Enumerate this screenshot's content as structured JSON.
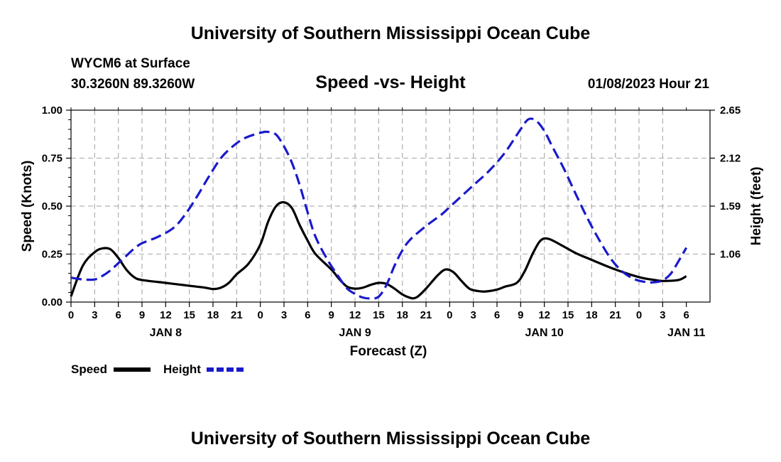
{
  "header": {
    "title": "University of Southern Mississippi Ocean Cube",
    "station": "WYCM6 at Surface",
    "location": "30.3260N  89.3260W",
    "subtitle": "Speed -vs- Height",
    "datetime": "01/08/2023 Hour 21"
  },
  "footer": {
    "title": "University of Southern Mississippi Ocean Cube"
  },
  "legend": {
    "speed_label": "Speed",
    "height_label": "Height"
  },
  "colors": {
    "speed": "#000000",
    "height": "#1a1acc",
    "grid": "#b4b4b4"
  },
  "chart_data": {
    "type": "line",
    "title": "Speed -vs- Height",
    "xlabel": "Forecast (Z)",
    "ylabel_left": "Speed (Knots)",
    "ylabel_right": "Height (feet)",
    "x_unit": "hours since JAN 8 00Z",
    "xlim": [
      -3,
      78
    ],
    "ylim_left": [
      0,
      1.0
    ],
    "ylim_right": [
      0.53,
      2.65
    ],
    "left_ticks": [
      {
        "value": 0,
        "label": "0.00"
      },
      {
        "value": 0.25,
        "label": "0.25"
      },
      {
        "value": 0.5,
        "label": "0.50"
      },
      {
        "value": 0.75,
        "label": "0.75"
      },
      {
        "value": 1.0,
        "label": "1.00"
      }
    ],
    "right_ticks": [
      {
        "value": 1.06,
        "label": "1.06"
      },
      {
        "value": 1.59,
        "label": "1.59"
      },
      {
        "value": 2.12,
        "label": "2.12"
      },
      {
        "value": 2.65,
        "label": "2.65"
      }
    ],
    "x_ticks": [
      {
        "x": -3,
        "label": "0"
      },
      {
        "x": 0,
        "label": "3"
      },
      {
        "x": 3,
        "label": "6"
      },
      {
        "x": 6,
        "label": "9"
      },
      {
        "x": 9,
        "label": "12"
      },
      {
        "x": 12,
        "label": "15"
      },
      {
        "x": 15,
        "label": "18"
      },
      {
        "x": 18,
        "label": "21"
      },
      {
        "x": 21,
        "label": "0"
      },
      {
        "x": 24,
        "label": "3"
      },
      {
        "x": 27,
        "label": "6"
      },
      {
        "x": 30,
        "label": "9"
      },
      {
        "x": 33,
        "label": "12"
      },
      {
        "x": 36,
        "label": "15"
      },
      {
        "x": 39,
        "label": "18"
      },
      {
        "x": 42,
        "label": "21"
      },
      {
        "x": 45,
        "label": "0"
      },
      {
        "x": 48,
        "label": "3"
      },
      {
        "x": 51,
        "label": "6"
      },
      {
        "x": 54,
        "label": "9"
      },
      {
        "x": 57,
        "label": "12"
      },
      {
        "x": 60,
        "label": "15"
      },
      {
        "x": 63,
        "label": "18"
      },
      {
        "x": 66,
        "label": "21"
      },
      {
        "x": 69,
        "label": "0"
      },
      {
        "x": 72,
        "label": "3"
      },
      {
        "x": 75,
        "label": "6"
      }
    ],
    "date_labels": [
      {
        "x": 9,
        "label": "JAN 8"
      },
      {
        "x": 33,
        "label": "JAN 9"
      },
      {
        "x": 57,
        "label": "JAN 10"
      },
      {
        "x": 75,
        "label": "JAN 11"
      }
    ],
    "series": [
      {
        "name": "Speed",
        "axis": "left",
        "style": "solid",
        "points": [
          [
            -3,
            0.03
          ],
          [
            -1.5,
            0.19
          ],
          [
            0,
            0.26
          ],
          [
            1,
            0.28
          ],
          [
            2,
            0.275
          ],
          [
            3,
            0.23
          ],
          [
            4,
            0.17
          ],
          [
            5,
            0.13
          ],
          [
            6,
            0.115
          ],
          [
            9,
            0.1
          ],
          [
            12,
            0.085
          ],
          [
            14,
            0.075
          ],
          [
            15,
            0.068
          ],
          [
            16,
            0.075
          ],
          [
            17,
            0.1
          ],
          [
            18,
            0.145
          ],
          [
            19.5,
            0.2
          ],
          [
            21,
            0.3
          ],
          [
            22,
            0.42
          ],
          [
            23,
            0.5
          ],
          [
            24,
            0.52
          ],
          [
            25,
            0.49
          ],
          [
            26,
            0.4
          ],
          [
            27,
            0.32
          ],
          [
            28,
            0.25
          ],
          [
            30,
            0.17
          ],
          [
            31,
            0.12
          ],
          [
            32,
            0.08
          ],
          [
            33,
            0.07
          ],
          [
            34,
            0.075
          ],
          [
            35,
            0.09
          ],
          [
            36,
            0.1
          ],
          [
            37,
            0.095
          ],
          [
            38,
            0.07
          ],
          [
            39,
            0.04
          ],
          [
            40,
            0.022
          ],
          [
            40.5,
            0.02
          ],
          [
            41,
            0.03
          ],
          [
            42,
            0.07
          ],
          [
            43.5,
            0.14
          ],
          [
            44.5,
            0.17
          ],
          [
            45.5,
            0.155
          ],
          [
            46.5,
            0.11
          ],
          [
            47.5,
            0.07
          ],
          [
            48.5,
            0.058
          ],
          [
            49.5,
            0.055
          ],
          [
            51,
            0.065
          ],
          [
            52,
            0.08
          ],
          [
            53.5,
            0.1
          ],
          [
            54.5,
            0.16
          ],
          [
            55.5,
            0.25
          ],
          [
            56.5,
            0.32
          ],
          [
            57.5,
            0.33
          ],
          [
            59,
            0.3
          ],
          [
            61,
            0.255
          ],
          [
            63,
            0.22
          ],
          [
            66,
            0.17
          ],
          [
            69,
            0.13
          ],
          [
            71,
            0.115
          ],
          [
            72,
            0.11
          ],
          [
            74,
            0.115
          ],
          [
            75,
            0.135
          ]
        ]
      },
      {
        "name": "Height",
        "axis": "right",
        "style": "dashed",
        "points": [
          [
            -3,
            0.8
          ],
          [
            -1.5,
            0.78
          ],
          [
            0,
            0.78
          ],
          [
            1,
            0.82
          ],
          [
            2,
            0.88
          ],
          [
            3,
            0.96
          ],
          [
            4,
            1.04
          ],
          [
            5,
            1.12
          ],
          [
            6,
            1.18
          ],
          [
            8,
            1.25
          ],
          [
            10,
            1.35
          ],
          [
            11.5,
            1.5
          ],
          [
            13,
            1.7
          ],
          [
            14.5,
            1.92
          ],
          [
            16,
            2.12
          ],
          [
            17.5,
            2.25
          ],
          [
            19,
            2.34
          ],
          [
            21,
            2.4
          ],
          [
            22,
            2.41
          ],
          [
            23,
            2.38
          ],
          [
            24,
            2.25
          ],
          [
            25,
            2.07
          ],
          [
            26,
            1.82
          ],
          [
            27,
            1.52
          ],
          [
            28,
            1.25
          ],
          [
            29.5,
            1.0
          ],
          [
            31,
            0.8
          ],
          [
            32,
            0.68
          ],
          [
            33,
            0.62
          ],
          [
            34,
            0.58
          ],
          [
            35,
            0.57
          ],
          [
            36,
            0.59
          ],
          [
            37,
            0.72
          ],
          [
            38,
            0.93
          ],
          [
            39,
            1.1
          ],
          [
            40,
            1.22
          ],
          [
            42,
            1.37
          ],
          [
            44,
            1.5
          ],
          [
            45,
            1.58
          ],
          [
            46,
            1.66
          ],
          [
            48,
            1.82
          ],
          [
            50,
            1.98
          ],
          [
            52,
            2.18
          ],
          [
            54,
            2.44
          ],
          [
            55,
            2.55
          ],
          [
            56,
            2.53
          ],
          [
            57,
            2.42
          ],
          [
            58,
            2.25
          ],
          [
            59.5,
            2.0
          ],
          [
            61,
            1.72
          ],
          [
            62.5,
            1.45
          ],
          [
            64,
            1.21
          ],
          [
            65.5,
            1.0
          ],
          [
            67,
            0.86
          ],
          [
            68.5,
            0.78
          ],
          [
            70,
            0.75
          ],
          [
            71,
            0.75
          ],
          [
            72,
            0.77
          ],
          [
            73,
            0.84
          ],
          [
            74,
            0.98
          ],
          [
            75,
            1.13
          ]
        ]
      }
    ]
  }
}
